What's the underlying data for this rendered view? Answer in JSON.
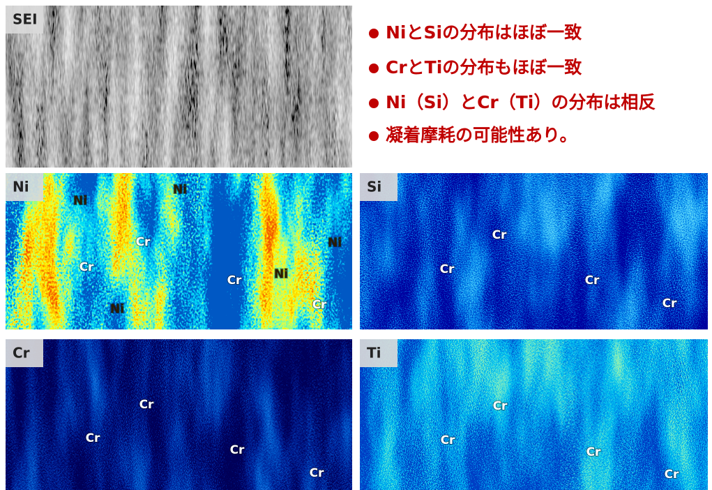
{
  "bullets": [
    "NiとSiの分布はほぼ一致",
    "CrとTiの分布もほぼ一致",
    "Ni（Si）とCr（Ti）の分布は相反",
    "凝着摩耗の可能性あり。"
  ],
  "panels": [
    {
      "label": "SEI",
      "annotations": []
    },
    {
      "label": "Ni",
      "annotations": [
        "Ni",
        "Ni",
        "Cr",
        "Cr",
        "Ni",
        "Ni",
        "Cr",
        "Ni",
        "Cr"
      ]
    },
    {
      "label": "Si",
      "annotations": [
        "Cr",
        "Cr",
        "Cr",
        "Cr"
      ]
    },
    {
      "label": "Cr",
      "annotations": [
        "Cr",
        "Cr",
        "Cr",
        "Cr"
      ]
    },
    {
      "label": "Ti",
      "annotations": [
        "Cr",
        "Cr",
        "Cr",
        "Cr"
      ]
    }
  ]
}
